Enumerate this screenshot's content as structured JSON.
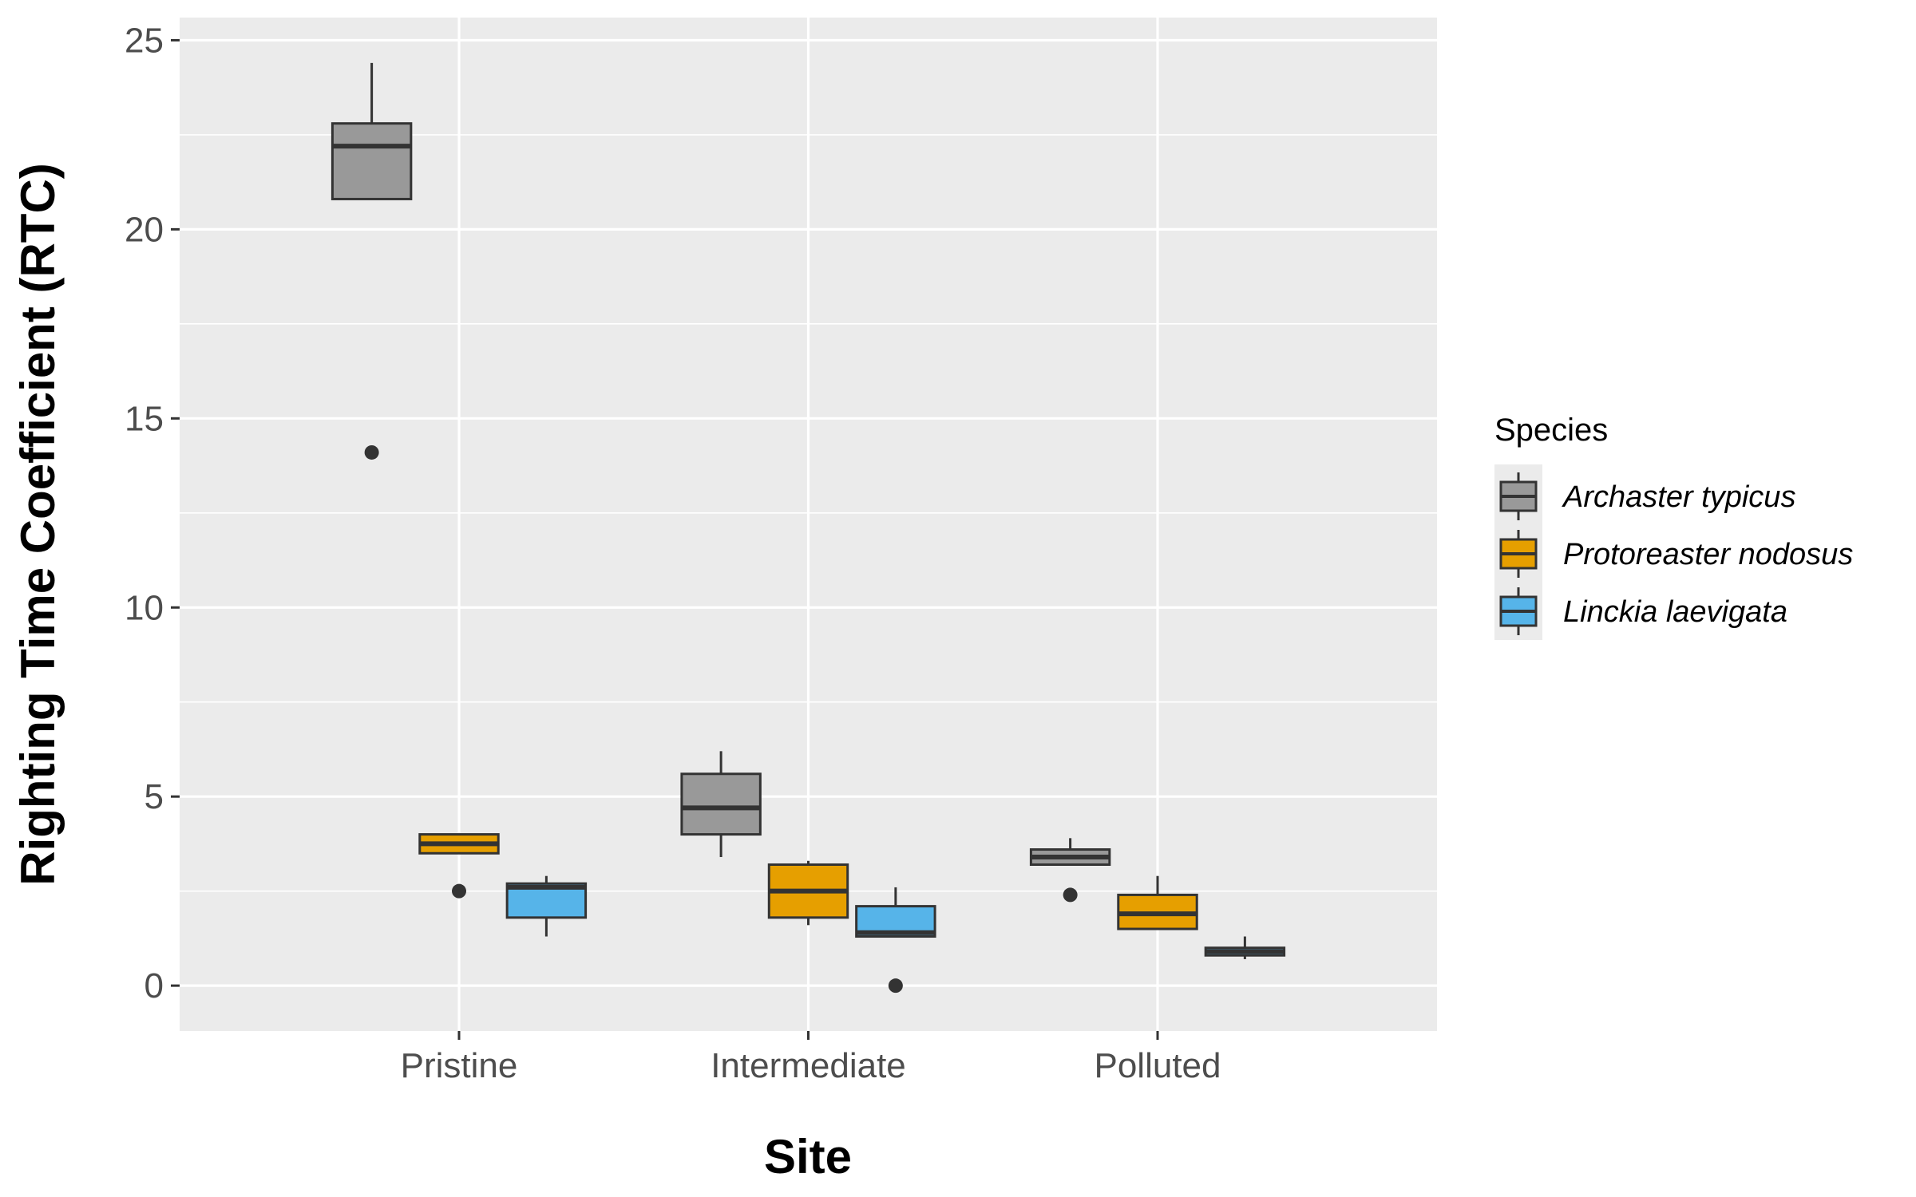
{
  "chart_data": {
    "type": "boxplot",
    "title": "",
    "xlabel": "Site",
    "ylabel": "Righting Time Coefficient (RTC)",
    "categories": [
      "Pristine",
      "Intermediate",
      "Polluted"
    ],
    "ylim": [
      -1.2,
      25.6
    ],
    "yticks": [
      0,
      5,
      10,
      15,
      20,
      25
    ],
    "grid": true,
    "legend_title": "Species",
    "legend_position": "right",
    "series": [
      {
        "name": "Archaster typicus",
        "color": "#999999",
        "boxes": [
          {
            "category": "Pristine",
            "whisker_low": 20.8,
            "q1": 20.8,
            "median": 22.2,
            "q3": 22.8,
            "whisker_high": 24.4,
            "outliers": [
              14.1
            ]
          },
          {
            "category": "Intermediate",
            "whisker_low": 3.4,
            "q1": 4.0,
            "median": 4.7,
            "q3": 5.6,
            "whisker_high": 6.2,
            "outliers": []
          },
          {
            "category": "Polluted",
            "whisker_low": 3.2,
            "q1": 3.2,
            "median": 3.4,
            "q3": 3.6,
            "whisker_high": 3.9,
            "outliers": [
              2.4
            ]
          }
        ]
      },
      {
        "name": "Protoreaster nodosus",
        "color": "#E69F00",
        "boxes": [
          {
            "category": "Pristine",
            "whisker_low": 3.5,
            "q1": 3.5,
            "median": 3.75,
            "q3": 4.0,
            "whisker_high": 4.0,
            "outliers": [
              2.5
            ]
          },
          {
            "category": "Intermediate",
            "whisker_low": 1.6,
            "q1": 1.8,
            "median": 2.5,
            "q3": 3.2,
            "whisker_high": 3.3,
            "outliers": []
          },
          {
            "category": "Polluted",
            "whisker_low": 1.5,
            "q1": 1.5,
            "median": 1.9,
            "q3": 2.4,
            "whisker_high": 2.9,
            "outliers": []
          }
        ]
      },
      {
        "name": "Linckia laevigata",
        "color": "#56B4E9",
        "boxes": [
          {
            "category": "Pristine",
            "whisker_low": 1.3,
            "q1": 1.8,
            "median": 2.6,
            "q3": 2.7,
            "whisker_high": 2.9,
            "outliers": []
          },
          {
            "category": "Intermediate",
            "whisker_low": 1.3,
            "q1": 1.3,
            "median": 1.4,
            "q3": 2.1,
            "whisker_high": 2.6,
            "outliers": [
              0.0
            ]
          },
          {
            "category": "Polluted",
            "whisker_low": 0.7,
            "q1": 0.8,
            "median": 0.9,
            "q3": 1.0,
            "whisker_high": 1.3,
            "outliers": []
          }
        ]
      }
    ]
  }
}
